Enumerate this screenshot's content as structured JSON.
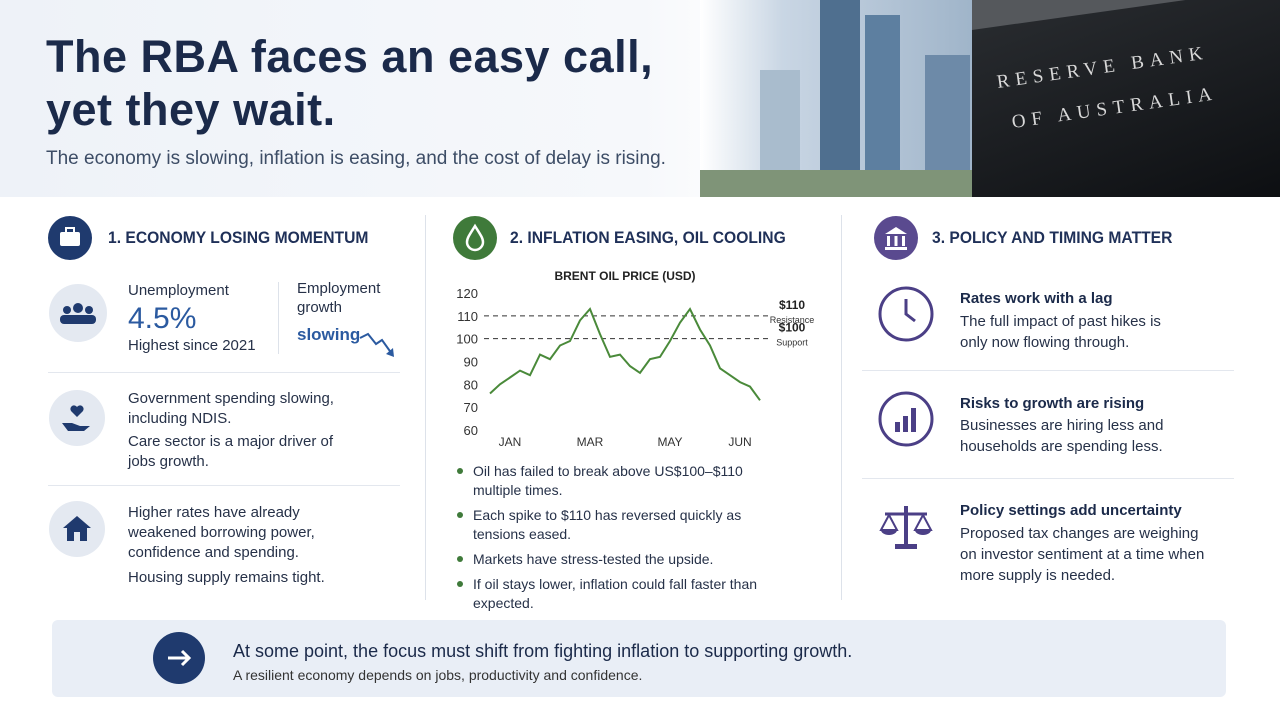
{
  "header": {
    "title": [
      "The RBA faces an easy call,",
      "yet they wait."
    ],
    "subtitle": "The economy is slowing, inflation is easing, and the cost of delay is rising.",
    "sign": [
      "RESERVE BANK",
      "OF AUSTRALIA"
    ]
  },
  "sections": [
    {
      "title": "1. ECONOMY LOSING MOMENTUM",
      "unemployment": {
        "label": "Unemployment",
        "value": "4.5%",
        "note": "Highest since 2021"
      },
      "employment": {
        "label": "Employment growth",
        "value": "slowing"
      },
      "items": [
        [
          "Government spending slowing, including NDIS.",
          "Care sector is a major driver of jobs growth."
        ],
        [
          "Higher rates have already weakened borrowing power, confidence and spending.",
          "Housing supply remains tight."
        ]
      ]
    },
    {
      "title": "2. INFLATION EASING, OIL COOLING",
      "chart": {
        "type": "line",
        "title": "BRENT OIL PRICE (USD)",
        "categories": [
          null,
          null,
          "JAN",
          null,
          null,
          null,
          null,
          null,
          null,
          null,
          "MAR",
          null,
          null,
          null,
          null,
          null,
          null,
          null,
          "MAY",
          null,
          null,
          null,
          null,
          null,
          null,
          "JUN",
          null,
          null
        ],
        "values": [
          76,
          80,
          83,
          86,
          84,
          93,
          91,
          97,
          99,
          108,
          113,
          102,
          92,
          93,
          88,
          85,
          91,
          92,
          99,
          107,
          113,
          104,
          97,
          87,
          84,
          81,
          79,
          73
        ],
        "color": "#4a8a3a",
        "ylim": [
          60,
          120
        ],
        "yticks": [
          60,
          70,
          80,
          90,
          100,
          110,
          120
        ],
        "reference_lines": [
          {
            "value": 110,
            "label": "$110",
            "note": "Resistance"
          },
          {
            "value": 100,
            "label": "$100",
            "note": "Support"
          }
        ]
      },
      "bullets": [
        "Oil has failed to break above US$100–$110 multiple times.",
        "Each spike to $110 has reversed quickly as tensions eased.",
        "Markets have stress-tested the upside.",
        "If oil stays lower, inflation could fall faster than expected."
      ]
    },
    {
      "title": "3. POLICY AND TIMING MATTER",
      "items": [
        {
          "heading": "Rates work with a lag",
          "text": "The full impact of past hikes is only now flowing through."
        },
        {
          "heading": "Risks to growth are rising",
          "text": "Businesses are hiring less and households are spending less."
        },
        {
          "heading": "Policy settings add uncertainty",
          "text": "Proposed tax changes are weighing on investor sentiment at a time when more supply is needed."
        }
      ]
    }
  ],
  "footer": {
    "heading": "At some point, the focus must shift from fighting inflation to supporting growth.",
    "text": "A resilient economy depends on jobs, productivity and confidence."
  }
}
